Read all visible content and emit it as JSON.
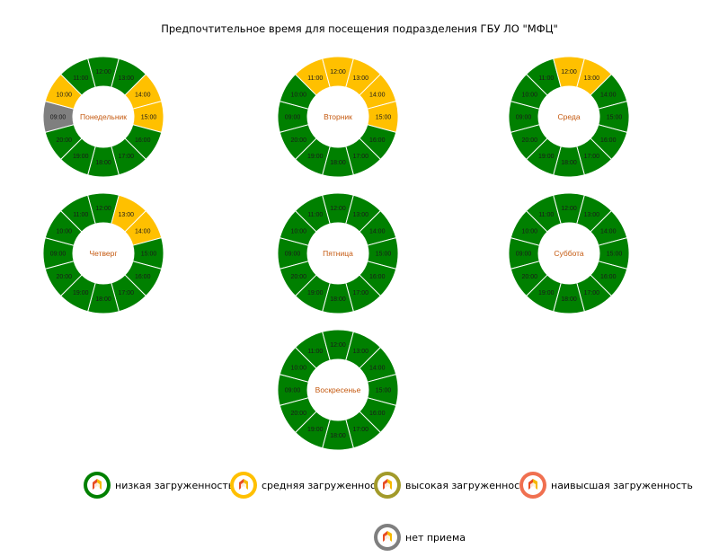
{
  "title": "Предпочтительное время для посещения подразделения ГБУ ЛО \"МФЦ\"",
  "colors": {
    "low": "#008000",
    "medium": "#ffc000",
    "high": "#a29a2a",
    "highest": "#f07050",
    "none": "#7f7f7f",
    "day_label": "#c55a11"
  },
  "chart_data": {
    "type": "pie",
    "slots": [
      "09:00",
      "10:00",
      "11:00",
      "12:00",
      "13:00",
      "14:00",
      "15:00",
      "16:00",
      "17:00",
      "18:00",
      "19:00",
      "20:00"
    ],
    "days": [
      {
        "name": "Понедельник",
        "load": [
          "none",
          "medium",
          "low",
          "low",
          "low",
          "medium",
          "medium",
          "low",
          "low",
          "low",
          "low",
          "low"
        ]
      },
      {
        "name": "Вторник",
        "load": [
          "low",
          "low",
          "medium",
          "medium",
          "medium",
          "medium",
          "medium",
          "low",
          "low",
          "low",
          "low",
          "low"
        ]
      },
      {
        "name": "Среда",
        "load": [
          "low",
          "low",
          "low",
          "medium",
          "medium",
          "low",
          "low",
          "low",
          "low",
          "low",
          "low",
          "low"
        ]
      },
      {
        "name": "Четверг",
        "load": [
          "low",
          "low",
          "low",
          "low",
          "medium",
          "medium",
          "low",
          "low",
          "low",
          "low",
          "low",
          "low"
        ]
      },
      {
        "name": "Пятница",
        "load": [
          "low",
          "low",
          "low",
          "low",
          "low",
          "low",
          "low",
          "low",
          "low",
          "low",
          "low",
          "low"
        ]
      },
      {
        "name": "Суббота",
        "load": [
          "low",
          "low",
          "low",
          "low",
          "low",
          "low",
          "low",
          "low",
          "low",
          "low",
          "low",
          "low"
        ]
      },
      {
        "name": "Воскресенье",
        "load": [
          "low",
          "low",
          "low",
          "low",
          "low",
          "low",
          "low",
          "low",
          "low",
          "low",
          "low",
          "low"
        ]
      }
    ]
  },
  "legend": [
    {
      "key": "low",
      "label": "низкая загруженность",
      "icon": "mfc-logo-icon"
    },
    {
      "key": "medium",
      "label": "средняя загруженность",
      "icon": "mfc-logo-icon"
    },
    {
      "key": "high",
      "label": "высокая загруженность",
      "icon": "mfc-logo-icon"
    },
    {
      "key": "highest",
      "label": "наивысшая загруженность",
      "icon": "mfc-logo-icon"
    },
    {
      "key": "none",
      "label": "нет приема",
      "icon": "mfc-logo-icon"
    }
  ]
}
